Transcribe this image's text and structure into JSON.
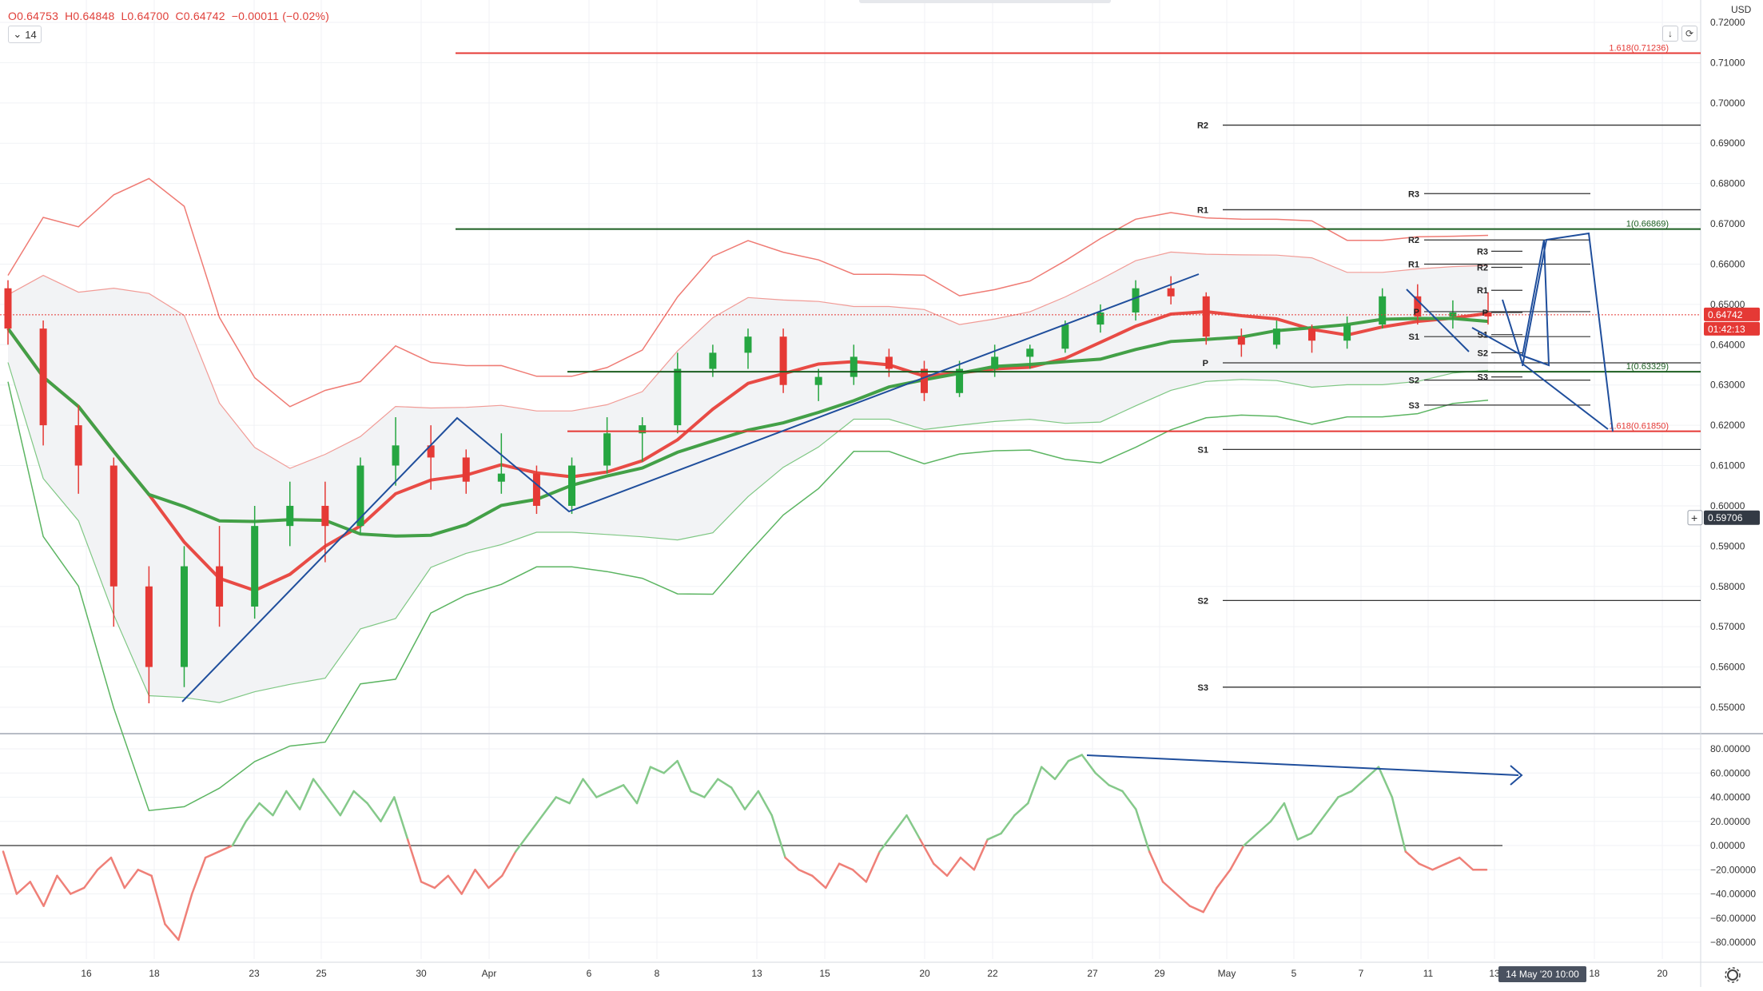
{
  "header": {
    "open": "O0.64753",
    "high": "H0.64848",
    "low": "L0.64700",
    "close": "C0.64742",
    "change": "−0.00011 (−0.02%)",
    "period_label": "14",
    "scroll_down_icon": "arrow-down-icon",
    "reset_icon": "reset-scale-icon"
  },
  "price_axis": {
    "currency": "USD",
    "ticks": [
      "0.72000",
      "0.71000",
      "0.70000",
      "0.69000",
      "0.68000",
      "0.67000",
      "0.66000",
      "0.65000",
      "0.64000",
      "0.63000",
      "0.62000",
      "0.61000",
      "0.60000",
      "0.59000",
      "0.58000",
      "0.57000",
      "0.56000",
      "0.55000"
    ],
    "current_price": "0.64742",
    "countdown": "01:42:13",
    "cursor_price": "0.59706"
  },
  "indicator_axis": {
    "ticks": [
      "80.00000",
      "60.00000",
      "40.00000",
      "20.00000",
      "0.00000",
      "−20.00000",
      "−40.00000",
      "−60.00000",
      "−80.00000"
    ]
  },
  "time_axis": {
    "ticks": [
      "16",
      "18",
      "23",
      "25",
      "30",
      "Apr",
      "6",
      "8",
      "13",
      "15",
      "20",
      "22",
      "27",
      "29",
      "May",
      "5",
      "7",
      "11",
      "13",
      "18",
      "20"
    ],
    "cursor_label": "14 May '20   10:00",
    "settings_icon": "gear-icon"
  },
  "chart_data": {
    "type": "candlestick",
    "symbol_currency": "USD",
    "price_range": [
      0.543,
      0.722
    ],
    "last_close": 0.64742,
    "candles": [
      {
        "date": "Mar 13",
        "o": 0.654,
        "h": 0.656,
        "l": 0.64,
        "c": 0.644
      },
      {
        "date": "Mar 16",
        "o": 0.644,
        "h": 0.646,
        "l": 0.615,
        "c": 0.62
      },
      {
        "date": "Mar 17",
        "o": 0.62,
        "h": 0.625,
        "l": 0.603,
        "c": 0.61
      },
      {
        "date": "Mar 18",
        "o": 0.61,
        "h": 0.612,
        "l": 0.57,
        "c": 0.58
      },
      {
        "date": "Mar 19",
        "o": 0.58,
        "h": 0.585,
        "l": 0.551,
        "c": 0.56
      },
      {
        "date": "Mar 20",
        "o": 0.56,
        "h": 0.59,
        "l": 0.555,
        "c": 0.585
      },
      {
        "date": "Mar 23",
        "o": 0.585,
        "h": 0.595,
        "l": 0.57,
        "c": 0.575
      },
      {
        "date": "Mar 24",
        "o": 0.575,
        "h": 0.6,
        "l": 0.572,
        "c": 0.595
      },
      {
        "date": "Mar 25",
        "o": 0.595,
        "h": 0.606,
        "l": 0.59,
        "c": 0.6
      },
      {
        "date": "Mar 26",
        "o": 0.6,
        "h": 0.606,
        "l": 0.586,
        "c": 0.595
      },
      {
        "date": "Mar 27",
        "o": 0.595,
        "h": 0.612,
        "l": 0.593,
        "c": 0.61
      },
      {
        "date": "Mar 30",
        "o": 0.61,
        "h": 0.622,
        "l": 0.605,
        "c": 0.615
      },
      {
        "date": "Mar 31",
        "o": 0.615,
        "h": 0.62,
        "l": 0.604,
        "c": 0.612
      },
      {
        "date": "Apr 1",
        "o": 0.612,
        "h": 0.614,
        "l": 0.603,
        "c": 0.606
      },
      {
        "date": "Apr 2",
        "o": 0.606,
        "h": 0.618,
        "l": 0.603,
        "c": 0.608
      },
      {
        "date": "Apr 3",
        "o": 0.608,
        "h": 0.61,
        "l": 0.598,
        "c": 0.6
      },
      {
        "date": "Apr 6",
        "o": 0.6,
        "h": 0.612,
        "l": 0.598,
        "c": 0.61
      },
      {
        "date": "Apr 7",
        "o": 0.61,
        "h": 0.622,
        "l": 0.608,
        "c": 0.618
      },
      {
        "date": "Apr 8",
        "o": 0.618,
        "h": 0.622,
        "l": 0.611,
        "c": 0.62
      },
      {
        "date": "Apr 9",
        "o": 0.62,
        "h": 0.638,
        "l": 0.618,
        "c": 0.634
      },
      {
        "date": "Apr 13",
        "o": 0.634,
        "h": 0.64,
        "l": 0.632,
        "c": 0.638
      },
      {
        "date": "Apr 14",
        "o": 0.638,
        "h": 0.644,
        "l": 0.634,
        "c": 0.642
      },
      {
        "date": "Apr 15",
        "o": 0.642,
        "h": 0.644,
        "l": 0.628,
        "c": 0.63
      },
      {
        "date": "Apr 16",
        "o": 0.63,
        "h": 0.634,
        "l": 0.626,
        "c": 0.632
      },
      {
        "date": "Apr 17",
        "o": 0.632,
        "h": 0.64,
        "l": 0.63,
        "c": 0.637
      },
      {
        "date": "Apr 20",
        "o": 0.637,
        "h": 0.639,
        "l": 0.632,
        "c": 0.634
      },
      {
        "date": "Apr 21",
        "o": 0.634,
        "h": 0.636,
        "l": 0.626,
        "c": 0.628
      },
      {
        "date": "Apr 22",
        "o": 0.628,
        "h": 0.636,
        "l": 0.627,
        "c": 0.634
      },
      {
        "date": "Apr 23",
        "o": 0.634,
        "h": 0.64,
        "l": 0.632,
        "c": 0.637
      },
      {
        "date": "Apr 24",
        "o": 0.637,
        "h": 0.64,
        "l": 0.634,
        "c": 0.639
      },
      {
        "date": "Apr 27",
        "o": 0.639,
        "h": 0.646,
        "l": 0.638,
        "c": 0.645
      },
      {
        "date": "Apr 28",
        "o": 0.645,
        "h": 0.65,
        "l": 0.643,
        "c": 0.648
      },
      {
        "date": "Apr 29",
        "o": 0.648,
        "h": 0.656,
        "l": 0.646,
        "c": 0.654
      },
      {
        "date": "Apr 30",
        "o": 0.654,
        "h": 0.657,
        "l": 0.65,
        "c": 0.652
      },
      {
        "date": "May 1",
        "o": 0.652,
        "h": 0.653,
        "l": 0.64,
        "c": 0.642
      },
      {
        "date": "May 4",
        "o": 0.642,
        "h": 0.644,
        "l": 0.637,
        "c": 0.64
      },
      {
        "date": "May 5",
        "o": 0.64,
        "h": 0.646,
        "l": 0.639,
        "c": 0.644
      },
      {
        "date": "May 6",
        "o": 0.644,
        "h": 0.645,
        "l": 0.638,
        "c": 0.641
      },
      {
        "date": "May 7",
        "o": 0.641,
        "h": 0.647,
        "l": 0.639,
        "c": 0.645
      },
      {
        "date": "May 8",
        "o": 0.645,
        "h": 0.654,
        "l": 0.644,
        "c": 0.652
      },
      {
        "date": "May 11",
        "o": 0.652,
        "h": 0.655,
        "l": 0.645,
        "c": 0.647
      },
      {
        "date": "May 12",
        "o": 0.647,
        "h": 0.651,
        "l": 0.644,
        "c": 0.648
      },
      {
        "date": "May 13",
        "o": 0.648,
        "h": 0.653,
        "l": 0.645,
        "c": 0.647
      }
    ],
    "horizontal_levels": [
      {
        "name": "1.618(0.71236)",
        "value": 0.71236,
        "color": "#e53935"
      },
      {
        "name": "R2",
        "value": 0.6945,
        "color": "#333333"
      },
      {
        "name": "R1",
        "value": 0.6735,
        "color": "#333333"
      },
      {
        "name": "1(0.66869)",
        "value": 0.66869,
        "color": "#1b5e20"
      },
      {
        "name": "P",
        "value": 0.6355,
        "color": "#333333"
      },
      {
        "name": "1(0.63329)",
        "value": 0.63329,
        "color": "#1b5e20"
      },
      {
        "name": "1.618(0.61850)",
        "value": 0.6185,
        "color": "#e53935"
      },
      {
        "name": "S1",
        "value": 0.614,
        "color": "#333333"
      },
      {
        "name": "S2",
        "value": 0.5765,
        "color": "#333333"
      },
      {
        "name": "S3",
        "value": 0.555,
        "color": "#333333"
      }
    ],
    "short_pivots": [
      {
        "name": "R3",
        "value": 0.6775
      },
      {
        "name": "R2",
        "value": 0.666
      },
      {
        "name": "R1",
        "value": 0.66
      },
      {
        "name": "P",
        "value": 0.6482
      },
      {
        "name": "S1",
        "value": 0.642
      },
      {
        "name": "S2",
        "value": 0.6312
      },
      {
        "name": "S3",
        "value": 0.625
      }
    ],
    "micro_pivots": [
      {
        "name": "R3",
        "value": 0.6632
      },
      {
        "name": "R2",
        "value": 0.6592
      },
      {
        "name": "R1",
        "value": 0.6535
      },
      {
        "name": "P",
        "value": 0.648
      },
      {
        "name": "S1",
        "value": 0.6425
      },
      {
        "name": "S2",
        "value": 0.638
      },
      {
        "name": "S3",
        "value": 0.632
      }
    ],
    "oscillator": {
      "range": [
        -85,
        85
      ],
      "zero_line": 0,
      "values": [
        -5,
        -40,
        -30,
        -50,
        -25,
        -40,
        -35,
        -20,
        -10,
        -35,
        -20,
        -25,
        -65,
        -78,
        -40,
        -10,
        -5,
        0,
        20,
        35,
        25,
        45,
        30,
        55,
        40,
        25,
        45,
        35,
        20,
        40,
        5,
        -30,
        -35,
        -25,
        -40,
        -20,
        -35,
        -25,
        -5,
        10,
        25,
        40,
        35,
        55,
        40,
        45,
        50,
        35,
        65,
        60,
        70,
        45,
        40,
        55,
        48,
        30,
        45,
        25,
        -10,
        -20,
        -25,
        -35,
        -15,
        -20,
        -30,
        -5,
        10,
        25,
        5,
        -15,
        -25,
        -10,
        -20,
        5,
        10,
        25,
        35,
        65,
        55,
        70,
        75,
        60,
        50,
        45,
        30,
        -5,
        -30,
        -40,
        -50,
        -55,
        -35,
        -20,
        0,
        10,
        20,
        35,
        5,
        10,
        25,
        40,
        45,
        55,
        65,
        40,
        -5,
        -15,
        -20,
        -15,
        -10,
        -20,
        -20
      ]
    }
  }
}
